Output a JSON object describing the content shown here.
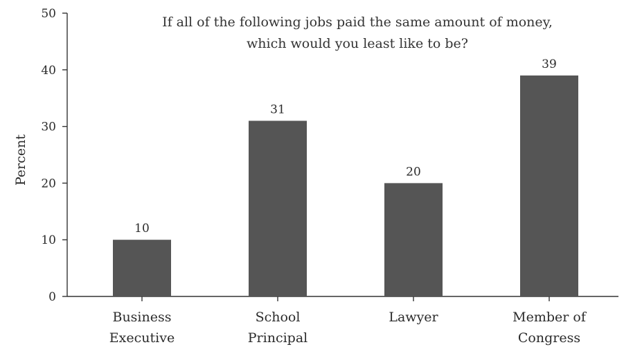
{
  "chart_data": {
    "type": "bar",
    "title_lines": [
      "If all of the following jobs paid the same amount of money,",
      "which would you least like to be?"
    ],
    "ylabel": "Percent",
    "xlabel": "",
    "categories": [
      [
        "Business",
        "Executive"
      ],
      [
        "School",
        "Principal"
      ],
      [
        "Lawyer"
      ],
      [
        "Member of",
        "Congress"
      ]
    ],
    "values": [
      10,
      31,
      20,
      39
    ],
    "data_labels": [
      "10",
      "31",
      "20",
      "39"
    ],
    "ylim": [
      0,
      50
    ],
    "yticks": [
      0,
      10,
      20,
      30,
      40,
      50
    ],
    "grid": false,
    "bar_color": "#555555",
    "axis_color": "#333333"
  }
}
